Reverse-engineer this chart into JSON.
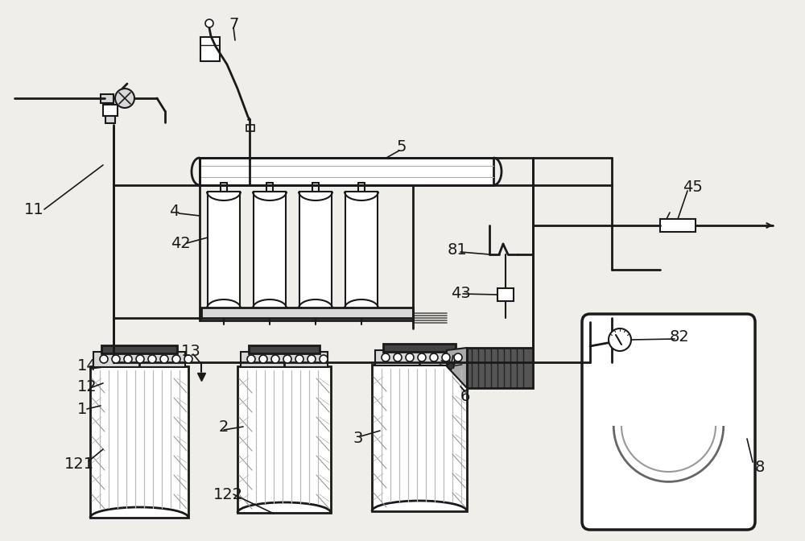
{
  "bg_color": "#f0eeea",
  "line_color": "#1a1a1a",
  "figsize": [
    10.0,
    6.72
  ],
  "dpi": 100,
  "white": "#ffffff",
  "light_gray": "#d8d8d8",
  "mid_gray": "#888888",
  "dark": "#333333"
}
